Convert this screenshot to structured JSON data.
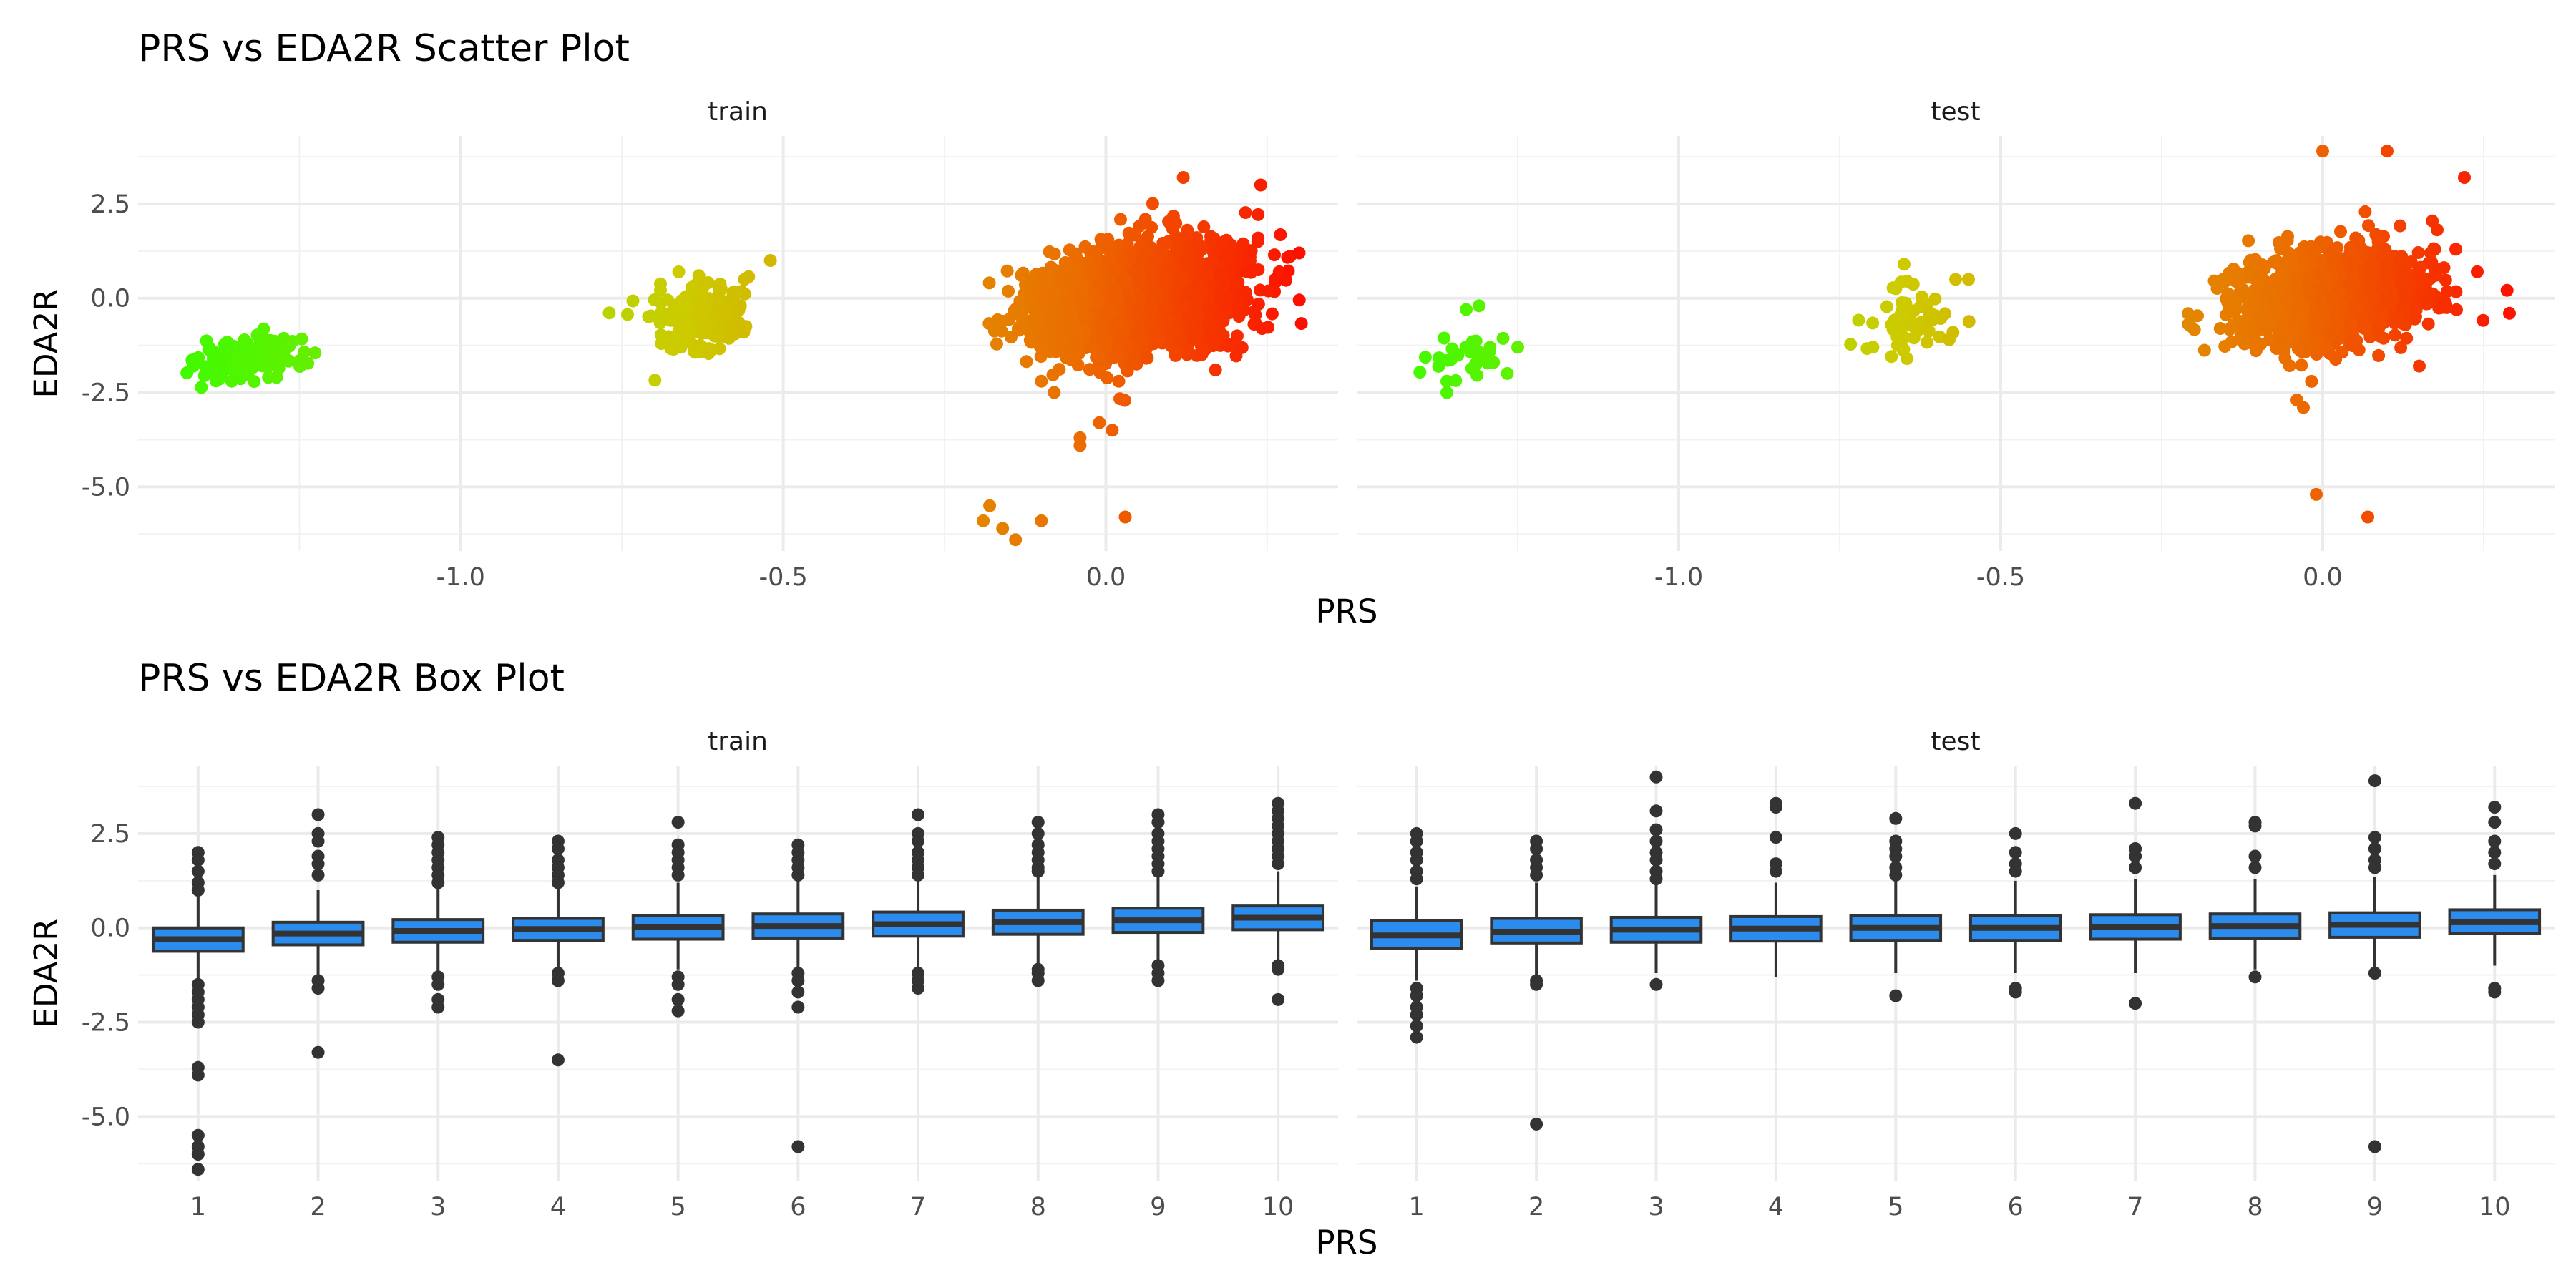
{
  "chart_data": [
    {
      "type": "scatter",
      "title": "PRS vs EDA2R Scatter Plot",
      "xlabel": "PRS",
      "ylabel": "EDA2R",
      "xlim": [
        -1.5,
        0.36
      ],
      "ylim": [
        -6.7,
        4.3
      ],
      "xticks": [
        -1.0,
        -0.5,
        0.0
      ],
      "xtick_labels": [
        "-1.0",
        "-0.5",
        "0.0"
      ],
      "yticks": [
        2.5,
        0.0,
        -2.5,
        -5.0
      ],
      "ytick_labels": [
        "2.5",
        "0.0",
        "-2.5",
        "-5.0"
      ],
      "grid": true,
      "color_encoding": {
        "low": "#33ff00",
        "mid": "#cccc00",
        "high": "#ff0000",
        "by": "PRS"
      },
      "facets": [
        {
          "label": "train",
          "clusters": [
            {
              "x_center": -1.33,
              "x_spread": 0.04,
              "y_center": -1.6,
              "y_spread": 0.3,
              "n": 160
            },
            {
              "x_center": -0.63,
              "x_spread": 0.035,
              "y_center": -0.6,
              "y_spread": 0.45,
              "n": 180
            },
            {
              "x_center": 0.05,
              "x_spread": 0.075,
              "y_center": 0.0,
              "y_spread": 0.65,
              "n": 2600
            }
          ],
          "outliers": [
            {
              "x": -0.18,
              "y": -5.5
            },
            {
              "x": -0.19,
              "y": -5.9
            },
            {
              "x": -0.16,
              "y": -6.1
            },
            {
              "x": -0.14,
              "y": -6.4
            },
            {
              "x": -0.1,
              "y": -5.9
            },
            {
              "x": 0.03,
              "y": -5.8
            },
            {
              "x": -0.04,
              "y": -3.9
            },
            {
              "x": -0.04,
              "y": -3.7
            },
            {
              "x": -0.01,
              "y": -3.3
            },
            {
              "x": 0.01,
              "y": -3.5
            },
            {
              "x": -0.08,
              "y": -2.5
            },
            {
              "x": -0.1,
              "y": -2.2
            },
            {
              "x": 0.02,
              "y": -2.2
            },
            {
              "x": 0.17,
              "y": -1.9
            },
            {
              "x": -0.52,
              "y": 1.0
            },
            {
              "x": -0.56,
              "y": 0.5
            },
            {
              "x": 0.12,
              "y": 3.2
            },
            {
              "x": 0.24,
              "y": 3.0
            }
          ]
        },
        {
          "label": "test",
          "clusters": [
            {
              "x_center": -1.33,
              "x_spread": 0.03,
              "y_center": -1.6,
              "y_spread": 0.35,
              "n": 30
            },
            {
              "x_center": -0.64,
              "x_spread": 0.04,
              "y_center": -0.6,
              "y_spread": 0.45,
              "n": 60
            },
            {
              "x_center": 0.01,
              "x_spread": 0.07,
              "y_center": 0.0,
              "y_spread": 0.6,
              "n": 1500
            }
          ],
          "outliers": [
            {
              "x": -1.31,
              "y": -0.2
            },
            {
              "x": -1.33,
              "y": -0.3
            },
            {
              "x": -1.36,
              "y": -2.5
            },
            {
              "x": -1.36,
              "y": -2.2
            },
            {
              "x": -1.25,
              "y": -1.3
            },
            {
              "x": -0.55,
              "y": 0.5
            },
            {
              "x": -0.57,
              "y": 0.5
            },
            {
              "x": -0.58,
              "y": -1.1
            },
            {
              "x": -0.65,
              "y": 0.9
            },
            {
              "x": -0.04,
              "y": -2.7
            },
            {
              "x": -0.03,
              "y": -2.9
            },
            {
              "x": -0.01,
              "y": -5.2
            },
            {
              "x": 0.07,
              "y": -5.8
            },
            {
              "x": 0.0,
              "y": 3.9
            },
            {
              "x": 0.1,
              "y": 3.9
            },
            {
              "x": 0.22,
              "y": 3.2
            },
            {
              "x": 0.29,
              "y": -0.4
            },
            {
              "x": 0.24,
              "y": 0.7
            },
            {
              "x": 0.15,
              "y": -1.8
            }
          ]
        }
      ]
    },
    {
      "type": "box",
      "title": "PRS vs EDA2R Box Plot",
      "xlabel": "PRS",
      "ylabel": "EDA2R",
      "categories": [
        "1",
        "2",
        "3",
        "4",
        "5",
        "6",
        "7",
        "8",
        "9",
        "10"
      ],
      "ylim": [
        -6.7,
        4.3
      ],
      "yticks": [
        2.5,
        0.0,
        -2.5,
        -5.0
      ],
      "ytick_labels": [
        "2.5",
        "0.0",
        "-2.5",
        "-5.0"
      ],
      "grid": true,
      "box_fill": "#2b8cee",
      "box_stroke": "#333333",
      "facets": [
        {
          "label": "train",
          "boxes": [
            {
              "q1": -0.62,
              "median": -0.3,
              "q3": 0.0,
              "whisker_low": -1.45,
              "whisker_high": 0.85
            },
            {
              "q1": -0.45,
              "median": -0.15,
              "q3": 0.15,
              "whisker_low": -1.3,
              "whisker_high": 1.0
            },
            {
              "q1": -0.38,
              "median": -0.08,
              "q3": 0.22,
              "whisker_low": -1.2,
              "whisker_high": 1.1
            },
            {
              "q1": -0.33,
              "median": -0.03,
              "q3": 0.25,
              "whisker_low": -1.15,
              "whisker_high": 1.1
            },
            {
              "q1": -0.3,
              "median": 0.02,
              "q3": 0.32,
              "whisker_low": -1.1,
              "whisker_high": 1.2
            },
            {
              "q1": -0.27,
              "median": 0.05,
              "q3": 0.37,
              "whisker_low": -1.1,
              "whisker_high": 1.25
            },
            {
              "q1": -0.22,
              "median": 0.1,
              "q3": 0.42,
              "whisker_low": -1.05,
              "whisker_high": 1.3
            },
            {
              "q1": -0.17,
              "median": 0.15,
              "q3": 0.47,
              "whisker_low": -1.0,
              "whisker_high": 1.35
            },
            {
              "q1": -0.12,
              "median": 0.2,
              "q3": 0.52,
              "whisker_low": -0.95,
              "whisker_high": 1.45
            },
            {
              "q1": -0.05,
              "median": 0.27,
              "q3": 0.58,
              "whisker_low": -0.9,
              "whisker_high": 1.5
            }
          ],
          "outliers": [
            [
              2.0,
              1.8,
              1.5,
              1.2,
              1.0,
              -1.5,
              -1.7,
              -1.9,
              -2.1,
              -2.3,
              -2.5,
              -3.7,
              -3.9,
              -5.5,
              -5.8,
              -6.0,
              -6.4
            ],
            [
              3.0,
              2.5,
              2.3,
              1.9,
              1.7,
              1.4,
              -1.4,
              -1.6,
              -3.3
            ],
            [
              2.4,
              2.2,
              2.0,
              1.8,
              1.6,
              1.4,
              1.2,
              -1.3,
              -1.5,
              -1.9,
              -2.1
            ],
            [
              2.3,
              2.1,
              1.8,
              1.6,
              1.4,
              1.2,
              -1.2,
              -1.4,
              -3.5
            ],
            [
              2.8,
              2.2,
              2.0,
              1.8,
              1.6,
              1.4,
              -1.3,
              -1.5,
              -1.9,
              -2.2
            ],
            [
              2.2,
              2.0,
              1.8,
              1.6,
              1.4,
              -1.2,
              -1.4,
              -1.7,
              -2.1,
              -5.8
            ],
            [
              3.0,
              2.5,
              2.3,
              2.0,
              1.8,
              1.6,
              1.4,
              -1.2,
              -1.4,
              -1.6
            ],
            [
              2.8,
              2.5,
              2.2,
              2.0,
              1.8,
              1.6,
              1.5,
              -1.1,
              -1.2,
              -1.4
            ],
            [
              3.0,
              2.8,
              2.5,
              2.3,
              2.1,
              1.9,
              1.7,
              1.5,
              -1.0,
              -1.2,
              -1.4
            ],
            [
              3.3,
              3.1,
              2.9,
              2.7,
              2.5,
              2.3,
              2.1,
              1.9,
              1.7,
              -1.0,
              -1.1,
              -1.9
            ]
          ]
        },
        {
          "label": "test",
          "boxes": [
            {
              "q1": -0.55,
              "median": -0.2,
              "q3": 0.2,
              "whisker_low": -1.4,
              "whisker_high": 1.1
            },
            {
              "q1": -0.4,
              "median": -0.1,
              "q3": 0.25,
              "whisker_low": -1.25,
              "whisker_high": 1.2
            },
            {
              "q1": -0.38,
              "median": -0.05,
              "q3": 0.28,
              "whisker_low": -1.2,
              "whisker_high": 1.15
            },
            {
              "q1": -0.35,
              "median": -0.02,
              "q3": 0.3,
              "whisker_low": -1.3,
              "whisker_high": 1.2
            },
            {
              "q1": -0.33,
              "median": 0.0,
              "q3": 0.32,
              "whisker_low": -1.2,
              "whisker_high": 1.25
            },
            {
              "q1": -0.33,
              "median": 0.0,
              "q3": 0.32,
              "whisker_low": -1.2,
              "whisker_high": 1.25
            },
            {
              "q1": -0.3,
              "median": 0.02,
              "q3": 0.35,
              "whisker_low": -1.2,
              "whisker_high": 1.3
            },
            {
              "q1": -0.28,
              "median": 0.05,
              "q3": 0.37,
              "whisker_low": -1.1,
              "whisker_high": 1.3
            },
            {
              "q1": -0.25,
              "median": 0.08,
              "q3": 0.4,
              "whisker_low": -1.1,
              "whisker_high": 1.35
            },
            {
              "q1": -0.15,
              "median": 0.15,
              "q3": 0.48,
              "whisker_low": -1.0,
              "whisker_high": 1.4
            }
          ],
          "outliers": [
            [
              2.5,
              2.3,
              2.0,
              1.8,
              1.5,
              1.3,
              -1.6,
              -1.8,
              -2.1,
              -2.3,
              -2.6,
              -2.9
            ],
            [
              2.3,
              2.1,
              1.8,
              1.6,
              1.4,
              -1.4,
              -1.5,
              -5.2
            ],
            [
              4.0,
              3.1,
              2.6,
              2.3,
              2.0,
              1.8,
              1.5,
              1.3,
              -1.5
            ],
            [
              3.3,
              3.2,
              2.4,
              1.7,
              1.5
            ],
            [
              2.9,
              2.3,
              2.1,
              1.9,
              1.6,
              1.4,
              -1.8
            ],
            [
              2.5,
              2.0,
              1.7,
              1.5,
              -1.6,
              -1.7
            ],
            [
              3.3,
              2.1,
              1.9,
              1.6,
              -2.0
            ],
            [
              2.8,
              2.7,
              1.9,
              1.6,
              -1.3
            ],
            [
              3.9,
              2.4,
              2.1,
              1.8,
              1.6,
              -1.2,
              -5.8
            ],
            [
              3.2,
              2.8,
              2.3,
              2.0,
              1.7,
              -1.6,
              -1.7
            ]
          ]
        }
      ]
    }
  ]
}
